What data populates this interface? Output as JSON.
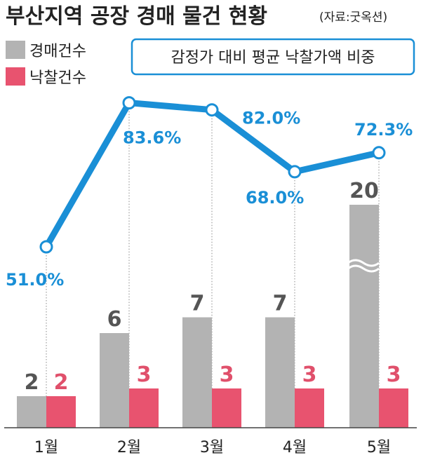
{
  "title": "부산지역 공장 경매 물건 현황",
  "source": "(자료:굿옥션)",
  "legend": {
    "auction": "경매건수",
    "sold": "낙찰건수",
    "line": "감정가 대비 평균 낙찰가액 비중"
  },
  "colors": {
    "auction": "#b3b3b3",
    "sold": "#e8536f",
    "line": "#1a8fd6"
  },
  "chart_data": {
    "type": "bar",
    "categories": [
      "1월",
      "2월",
      "3월",
      "4월",
      "5월"
    ],
    "series": [
      {
        "name": "경매건수",
        "values": [
          2,
          6,
          7,
          7,
          20
        ]
      },
      {
        "name": "낙찰건수",
        "values": [
          2,
          3,
          3,
          3,
          3
        ]
      }
    ],
    "line_series": {
      "name": "감정가 대비 평균 낙찰가액 비중",
      "values": [
        51.0,
        83.6,
        82.0,
        68.0,
        72.3
      ],
      "labels": [
        "51.0%",
        "83.6%",
        "82.0%",
        "68.0%",
        "72.3%"
      ]
    },
    "bar_ylim": [
      0,
      7
    ],
    "axis_break": "5월 경매건수 bar is broken (wavy break)"
  }
}
